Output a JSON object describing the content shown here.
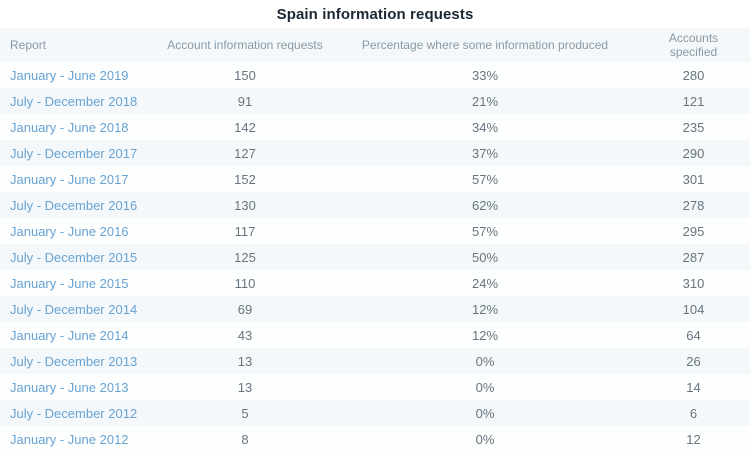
{
  "page": {
    "title": "Spain information requests"
  },
  "colors": {
    "header_bg": "#f5f8fa",
    "stripe_bg": "#f5f8fa",
    "row_bg": "#fdfefe",
    "link_blue": "#68a3d3",
    "header_text": "#8899a6",
    "cell_text": "#66757f",
    "title_text": "#1b2733"
  },
  "table": {
    "columns": [
      "Report",
      "Account information requests",
      "Percentage where some information produced",
      "Accounts specified"
    ],
    "rows": [
      {
        "report": "January - June 2019",
        "requests": "150",
        "percentage": "33%",
        "accounts": "280"
      },
      {
        "report": "July - December 2018",
        "requests": "91",
        "percentage": "21%",
        "accounts": "121"
      },
      {
        "report": "January - June 2018",
        "requests": "142",
        "percentage": "34%",
        "accounts": "235"
      },
      {
        "report": "July - December 2017",
        "requests": "127",
        "percentage": "37%",
        "accounts": "290"
      },
      {
        "report": "January - June 2017",
        "requests": "152",
        "percentage": "57%",
        "accounts": "301"
      },
      {
        "report": "July - December 2016",
        "requests": "130",
        "percentage": "62%",
        "accounts": "278"
      },
      {
        "report": "January - June 2016",
        "requests": "117",
        "percentage": "57%",
        "accounts": "295"
      },
      {
        "report": "July - December 2015",
        "requests": "125",
        "percentage": "50%",
        "accounts": "287"
      },
      {
        "report": "January - June 2015",
        "requests": "110",
        "percentage": "24%",
        "accounts": "310"
      },
      {
        "report": "July - December 2014",
        "requests": "69",
        "percentage": "12%",
        "accounts": "104"
      },
      {
        "report": "January - June 2014",
        "requests": "43",
        "percentage": "12%",
        "accounts": "64"
      },
      {
        "report": "July - December 2013",
        "requests": "13",
        "percentage": "0%",
        "accounts": "26"
      },
      {
        "report": "January - June 2013",
        "requests": "13",
        "percentage": "0%",
        "accounts": "14"
      },
      {
        "report": "July - December 2012",
        "requests": "5",
        "percentage": "0%",
        "accounts": "6"
      },
      {
        "report": "January - June 2012",
        "requests": "8",
        "percentage": "0%",
        "accounts": "12"
      }
    ]
  },
  "chart_data": {
    "type": "table",
    "title": "Spain information requests",
    "columns": [
      "Report",
      "Account information requests",
      "Percentage where some information produced",
      "Accounts specified"
    ],
    "rows": [
      [
        "January - June 2019",
        150,
        "33%",
        280
      ],
      [
        "July - December 2018",
        91,
        "21%",
        121
      ],
      [
        "January - June 2018",
        142,
        "34%",
        235
      ],
      [
        "July - December 2017",
        127,
        "37%",
        290
      ],
      [
        "January - June 2017",
        152,
        "57%",
        301
      ],
      [
        "July - December 2016",
        130,
        "62%",
        278
      ],
      [
        "January - June 2016",
        117,
        "57%",
        295
      ],
      [
        "July - December 2015",
        125,
        "50%",
        287
      ],
      [
        "January - June 2015",
        110,
        "24%",
        310
      ],
      [
        "July - December 2014",
        69,
        "12%",
        104
      ],
      [
        "January - June 2014",
        43,
        "12%",
        64
      ],
      [
        "July - December 2013",
        13,
        "0%",
        26
      ],
      [
        "January - June 2013",
        13,
        "0%",
        14
      ],
      [
        "July - December 2012",
        5,
        "0%",
        6
      ],
      [
        "January - June 2012",
        8,
        "0%",
        12
      ]
    ],
    "layout": {
      "striped_rows": true,
      "first_column_alignment": "left",
      "other_columns_alignment": "center",
      "links_in_first_column": true
    }
  }
}
